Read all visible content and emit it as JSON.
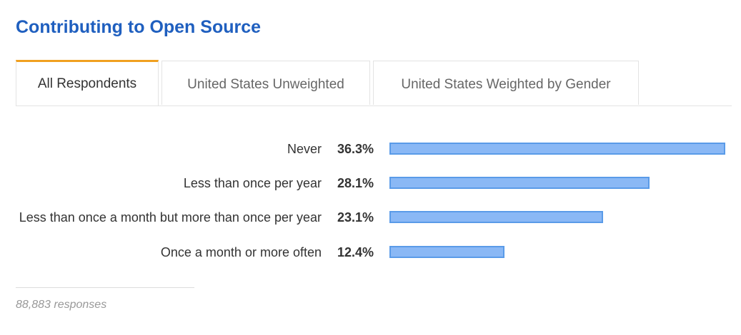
{
  "chart_data": {
    "type": "bar",
    "orientation": "horizontal",
    "title": "Contributing to Open Source",
    "categories": [
      "Never",
      "Less than once per year",
      "Less than once a month but more than once per year",
      "Once a month or more often"
    ],
    "values": [
      36.3,
      28.1,
      23.1,
      12.4
    ],
    "value_labels": [
      "36.3%",
      "28.1%",
      "23.1%",
      "12.4%"
    ],
    "color": "#8ab8f5"
  },
  "tabs": [
    "All Respondents",
    "United States Unweighted",
    "United States Weighted by Gender"
  ],
  "footer": "88,883 responses"
}
